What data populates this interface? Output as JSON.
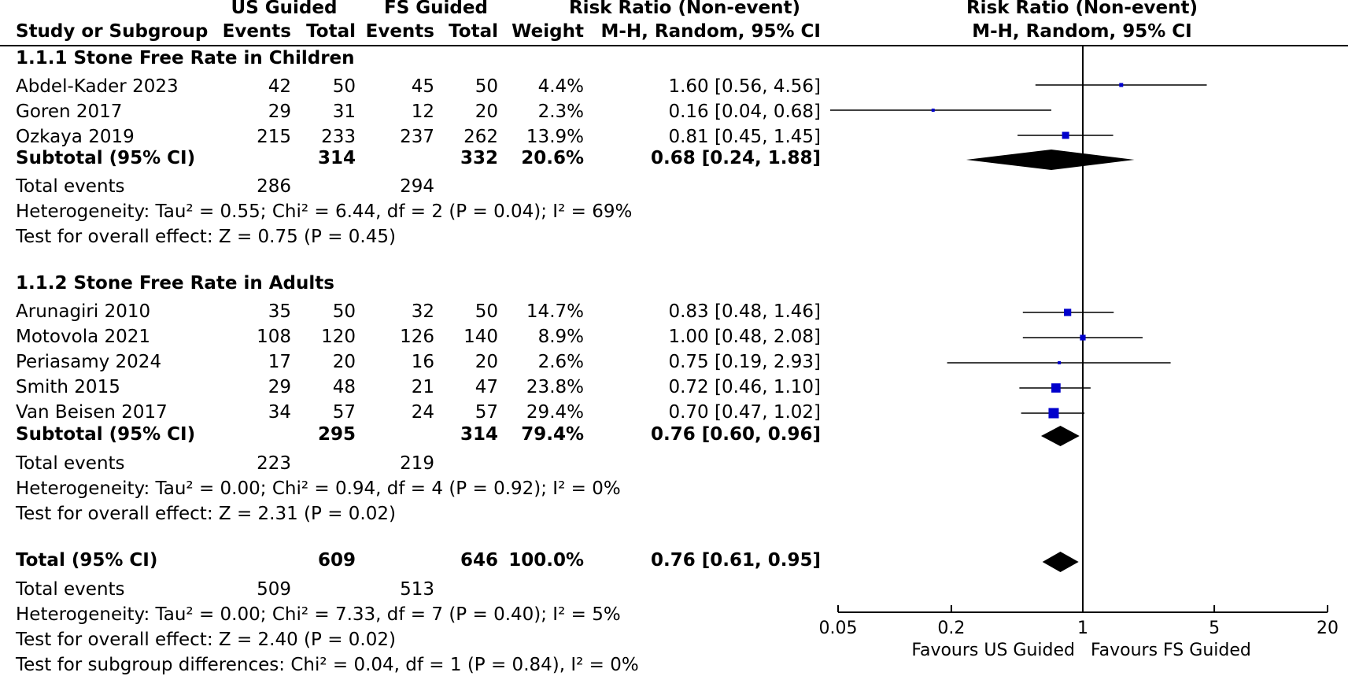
{
  "table": {
    "header": {
      "group1": "US Guided",
      "group2": "FS Guided",
      "col_study": "Study or Subgroup",
      "col_events": "Events",
      "col_total": "Total",
      "col_weight": "Weight",
      "rr_title": "Risk Ratio (Non-event)",
      "rr_method": "M-H, Random, 95% CI"
    },
    "subgroups": [
      {
        "title": "1.1.1 Stone Free Rate in Children",
        "studies": [
          {
            "name": "Abdel-Kader 2023",
            "e1": "42",
            "t1": "50",
            "e2": "45",
            "t2": "50",
            "weight": "4.4%",
            "ci": "1.60 [0.56, 4.56]"
          },
          {
            "name": "Goren 2017",
            "e1": "29",
            "t1": "31",
            "e2": "12",
            "t2": "20",
            "weight": "2.3%",
            "ci": "0.16 [0.04, 0.68]"
          },
          {
            "name": "Ozkaya 2019",
            "e1": "215",
            "t1": "233",
            "e2": "237",
            "t2": "262",
            "weight": "13.9%",
            "ci": "0.81 [0.45, 1.45]"
          }
        ],
        "subtotal": {
          "label": "Subtotal (95% CI)",
          "t1": "314",
          "t2": "332",
          "weight": "20.6%",
          "ci": "0.68 [0.24, 1.88]"
        },
        "events": {
          "label": "Total events",
          "e1": "286",
          "e2": "294"
        },
        "heterogeneity": "Heterogeneity: Tau² = 0.55; Chi² = 6.44, df = 2 (P = 0.04); I² = 69%",
        "overall": "Test for overall effect: Z = 0.75 (P = 0.45)"
      },
      {
        "title": "1.1.2 Stone Free Rate in Adults",
        "studies": [
          {
            "name": "Arunagiri 2010",
            "e1": "35",
            "t1": "50",
            "e2": "32",
            "t2": "50",
            "weight": "14.7%",
            "ci": "0.83 [0.48, 1.46]"
          },
          {
            "name": "Motovola 2021",
            "e1": "108",
            "t1": "120",
            "e2": "126",
            "t2": "140",
            "weight": "8.9%",
            "ci": "1.00 [0.48, 2.08]"
          },
          {
            "name": "Periasamy 2024",
            "e1": "17",
            "t1": "20",
            "e2": "16",
            "t2": "20",
            "weight": "2.6%",
            "ci": "0.75 [0.19, 2.93]"
          },
          {
            "name": "Smith 2015",
            "e1": "29",
            "t1": "48",
            "e2": "21",
            "t2": "47",
            "weight": "23.8%",
            "ci": "0.72 [0.46, 1.10]"
          },
          {
            "name": "Van Beisen 2017",
            "e1": "34",
            "t1": "57",
            "e2": "24",
            "t2": "57",
            "weight": "29.4%",
            "ci": "0.70 [0.47, 1.02]"
          }
        ],
        "subtotal": {
          "label": "Subtotal (95% CI)",
          "t1": "295",
          "t2": "314",
          "weight": "79.4%",
          "ci": "0.76 [0.60, 0.96]"
        },
        "events": {
          "label": "Total events",
          "e1": "223",
          "e2": "219"
        },
        "heterogeneity": "Heterogeneity: Tau² = 0.00; Chi² = 0.94, df = 4 (P = 0.92); I² = 0%",
        "overall": "Test for overall effect: Z = 2.31 (P = 0.02)"
      }
    ],
    "total": {
      "label": "Total (95% CI)",
      "t1": "609",
      "t2": "646",
      "weight": "100.0%",
      "ci": "0.76 [0.61, 0.95]"
    },
    "total_events": {
      "label": "Total events",
      "e1": "509",
      "e2": "513"
    },
    "total_heterogeneity": "Heterogeneity: Tau² = 0.00; Chi² = 7.33, df = 7 (P = 0.40); I² = 5%",
    "total_overall": "Test for overall effect: Z = 2.40 (P = 0.02)",
    "subgroup_differences": "Test for subgroup differences: Chi² = 0.04, df = 1 (P = 0.84), I² = 0%"
  },
  "chart_data": {
    "type": "forest",
    "title": "Risk Ratio (Non-event)",
    "subtitle": "M-H, Random, 95% CI",
    "x_scale": "log",
    "xlim": [
      0.05,
      20
    ],
    "x_ticks": [
      0.05,
      0.2,
      1,
      5,
      20
    ],
    "x_tick_labels": [
      "0.05",
      "0.2",
      "1",
      "5",
      "20"
    ],
    "null_line": 1,
    "favours_left": "Favours US Guided",
    "favours_right": "Favours FS Guided",
    "marker_color": "#0000cc",
    "diamond_color": "#000000",
    "studies": [
      {
        "name": "Abdel-Kader 2023",
        "rr": 1.6,
        "lo": 0.56,
        "hi": 4.56,
        "weight": 4.4
      },
      {
        "name": "Goren 2017",
        "rr": 0.16,
        "lo": 0.04,
        "hi": 0.68,
        "weight": 2.3
      },
      {
        "name": "Ozkaya 2019",
        "rr": 0.81,
        "lo": 0.45,
        "hi": 1.45,
        "weight": 13.9
      },
      {
        "name": "Arunagiri 2010",
        "rr": 0.83,
        "lo": 0.48,
        "hi": 1.46,
        "weight": 14.7
      },
      {
        "name": "Motovola 2021",
        "rr": 1.0,
        "lo": 0.48,
        "hi": 2.08,
        "weight": 8.9
      },
      {
        "name": "Periasamy 2024",
        "rr": 0.75,
        "lo": 0.19,
        "hi": 2.93,
        "weight": 2.6
      },
      {
        "name": "Smith 2015",
        "rr": 0.72,
        "lo": 0.46,
        "hi": 1.1,
        "weight": 23.8
      },
      {
        "name": "Van Beisen 2017",
        "rr": 0.7,
        "lo": 0.47,
        "hi": 1.02,
        "weight": 29.4
      }
    ],
    "diamonds": [
      {
        "name": "Subtotal Children",
        "rr": 0.68,
        "lo": 0.24,
        "hi": 1.88
      },
      {
        "name": "Subtotal Adults",
        "rr": 0.76,
        "lo": 0.6,
        "hi": 0.96
      },
      {
        "name": "Total",
        "rr": 0.76,
        "lo": 0.61,
        "hi": 0.95
      }
    ]
  }
}
